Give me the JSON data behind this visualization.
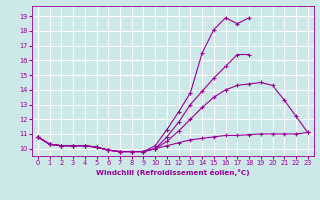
{
  "xlabel": "Windchill (Refroidissement éolien,°C)",
  "xlim": [
    -0.5,
    23.5
  ],
  "ylim": [
    9.5,
    19.7
  ],
  "xticks": [
    0,
    1,
    2,
    3,
    4,
    5,
    6,
    7,
    8,
    9,
    10,
    11,
    12,
    13,
    14,
    15,
    16,
    17,
    18,
    19,
    20,
    21,
    22,
    23
  ],
  "yticks": [
    10,
    11,
    12,
    13,
    14,
    15,
    16,
    17,
    18,
    19
  ],
  "background_color": "#cce8e8",
  "grid_color": "#ffffff",
  "line_color": "#990099",
  "series": [
    {
      "x": [
        0,
        1,
        2,
        3,
        4,
        5,
        6,
        7,
        8,
        9,
        10,
        11,
        12,
        13,
        14,
        15,
        16,
        17,
        18,
        19,
        20,
        21,
        22,
        23
      ],
      "y": [
        10.8,
        10.3,
        10.2,
        10.2,
        10.2,
        10.1,
        9.9,
        9.8,
        9.8,
        9.8,
        10.0,
        10.2,
        10.4,
        10.6,
        10.7,
        10.8,
        10.9,
        10.9,
        10.95,
        11.0,
        11.0,
        11.0,
        11.0,
        11.1
      ]
    },
    {
      "x": [
        0,
        1,
        2,
        3,
        4,
        5,
        6,
        7,
        8,
        9,
        10,
        11,
        12,
        13,
        14,
        15,
        16,
        17,
        18,
        19,
        20,
        21,
        22,
        23
      ],
      "y": [
        10.8,
        10.3,
        10.2,
        10.2,
        10.2,
        10.1,
        9.9,
        9.8,
        9.8,
        9.8,
        10.0,
        10.5,
        11.2,
        12.0,
        12.8,
        13.5,
        14.0,
        14.3,
        14.4,
        14.5,
        14.3,
        13.3,
        12.2,
        11.1
      ]
    },
    {
      "x": [
        0,
        1,
        2,
        3,
        4,
        5,
        6,
        7,
        8,
        9,
        10,
        11,
        12,
        13,
        14,
        15,
        16,
        17,
        18,
        19,
        20,
        21,
        22,
        23
      ],
      "y": [
        10.8,
        10.3,
        10.2,
        10.2,
        10.2,
        10.1,
        9.9,
        9.8,
        9.8,
        9.8,
        10.0,
        10.8,
        11.8,
        13.0,
        13.9,
        14.8,
        15.6,
        16.4,
        16.4,
        null,
        null,
        null,
        null,
        null
      ]
    },
    {
      "x": [
        0,
        1,
        2,
        3,
        4,
        5,
        6,
        7,
        8,
        9,
        10,
        11,
        12,
        13,
        14,
        15,
        16,
        17,
        18,
        19,
        20,
        21,
        22,
        23
      ],
      "y": [
        10.8,
        10.3,
        10.2,
        10.2,
        10.2,
        10.1,
        9.9,
        9.8,
        9.8,
        9.8,
        10.2,
        11.3,
        12.5,
        13.8,
        16.5,
        18.1,
        18.9,
        18.5,
        18.9,
        null,
        null,
        null,
        null,
        null
      ]
    }
  ]
}
